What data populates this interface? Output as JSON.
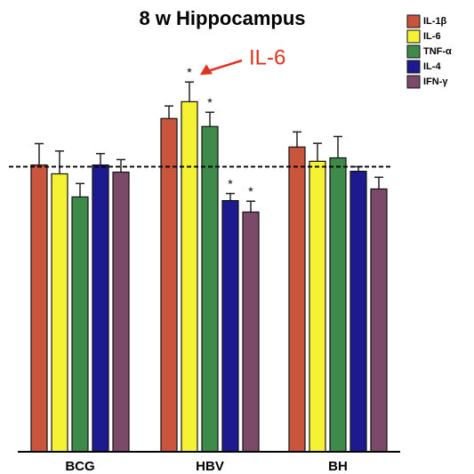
{
  "chart_data": {
    "type": "bar",
    "title": "8 w Hippocampus",
    "categories": [
      "BCG",
      "HBV",
      "BH"
    ],
    "series": [
      {
        "name": "IL-1β",
        "color": "#c9553d",
        "values": [
          100.6,
          116.9,
          106.9
        ],
        "errors": [
          7.5,
          4.4,
          5.3
        ]
      },
      {
        "name": "IL-6",
        "color": "#f4f233",
        "values": [
          97.5,
          122.8,
          101.9
        ],
        "errors": [
          8,
          6.9,
          6.3
        ]
      },
      {
        "name": "TNF-α",
        "color": "#3e8a4b",
        "values": [
          89.4,
          114.1,
          103.1
        ],
        "errors": [
          4.7,
          5,
          7.5
        ]
      },
      {
        "name": "IL-4",
        "color": "#1c1a8e",
        "values": [
          100.6,
          88.1,
          98.4
        ],
        "errors": [
          4,
          2.5,
          1.6
        ]
      },
      {
        "name": "IFN-γ",
        "color": "#7b4a68",
        "values": [
          98.1,
          84.1,
          92.2
        ],
        "errors": [
          4.4,
          3.8,
          4.1
        ]
      }
    ],
    "reference_line": 100,
    "ylim": [
      0,
      146
    ],
    "significance": [
      {
        "text": "*",
        "series": 1,
        "category": 1
      },
      {
        "text": "*",
        "series": 2,
        "category": 1
      },
      {
        "text": "*",
        "series": 3,
        "category": 1
      },
      {
        "text": "*",
        "series": 4,
        "category": 1
      }
    ],
    "annotation": {
      "text": "IL-6",
      "color": "#e0321e"
    },
    "legend": "top-right"
  }
}
